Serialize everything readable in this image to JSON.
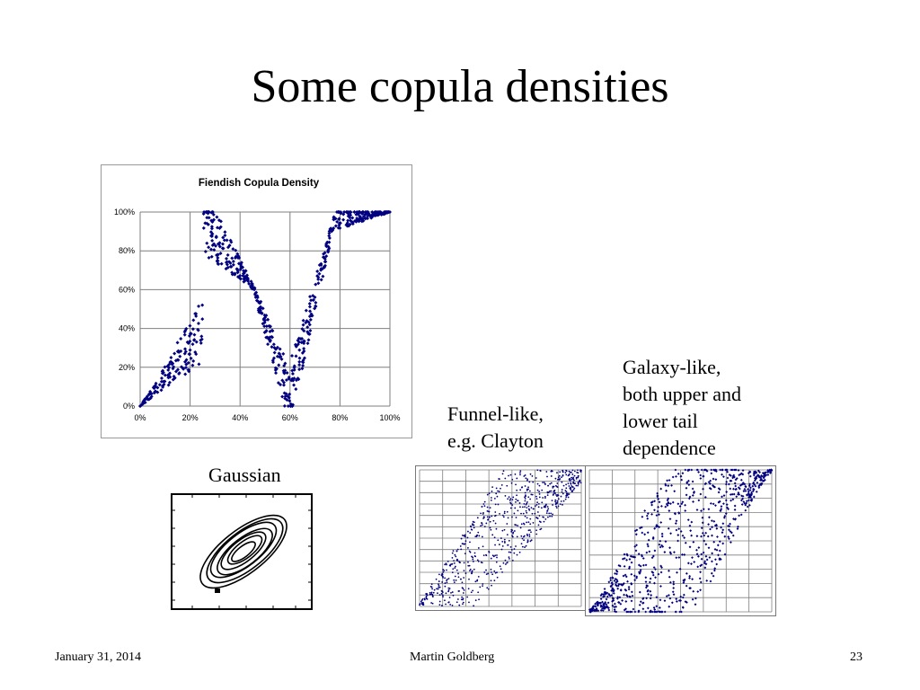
{
  "slide": {
    "title": "Some copula densities",
    "captions": {
      "gaussian": "Gaussian",
      "funnel": [
        "Funnel-like,",
        "e.g. Clayton"
      ],
      "galaxy": [
        "Galaxy-like,",
        "both upper and",
        "lower tail",
        "dependence"
      ]
    },
    "footer": {
      "date": "January 31, 2014",
      "author": "Martin Goldberg",
      "page": "23"
    }
  },
  "colors": {
    "points": "#000080",
    "grid": "#7f7f7f",
    "contour": "#000000"
  },
  "chart_data": [
    {
      "id": "fiendish",
      "type": "scatter",
      "title": "Fiendish Copula Density",
      "xlim": [
        0,
        1
      ],
      "ylim": [
        0,
        1
      ],
      "x_ticks": [
        "0%",
        "20%",
        "40%",
        "60%",
        "80%",
        "100%"
      ],
      "y_ticks": [
        "0%",
        "20%",
        "40%",
        "60%",
        "80%",
        "100%"
      ],
      "grid": true,
      "marker": "diamond",
      "color": "#000080",
      "approx_points": 700,
      "shape_anchors": [
        [
          0,
          0
        ],
        [
          0.25,
          0.98
        ],
        [
          0.45,
          0.62
        ],
        [
          0.6,
          0.05
        ],
        [
          0.78,
          0.97
        ],
        [
          1,
          1
        ]
      ]
    },
    {
      "id": "gaussian",
      "type": "contour",
      "label": "Gaussian",
      "correlation": 0.7,
      "levels": 7,
      "grid": false
    },
    {
      "id": "funnel",
      "type": "scatter",
      "label": "Funnel-like, e.g. Clayton",
      "xlim": [
        0,
        1
      ],
      "ylim": [
        0,
        1
      ],
      "grid": true,
      "color": "#000080",
      "approx_points": 700
    },
    {
      "id": "galaxy",
      "type": "scatter",
      "label": "Galaxy-like, both upper and lower tail dependence",
      "xlim": [
        0,
        1
      ],
      "ylim": [
        0,
        1
      ],
      "grid": true,
      "color": "#000080",
      "approx_points": 800
    }
  ]
}
